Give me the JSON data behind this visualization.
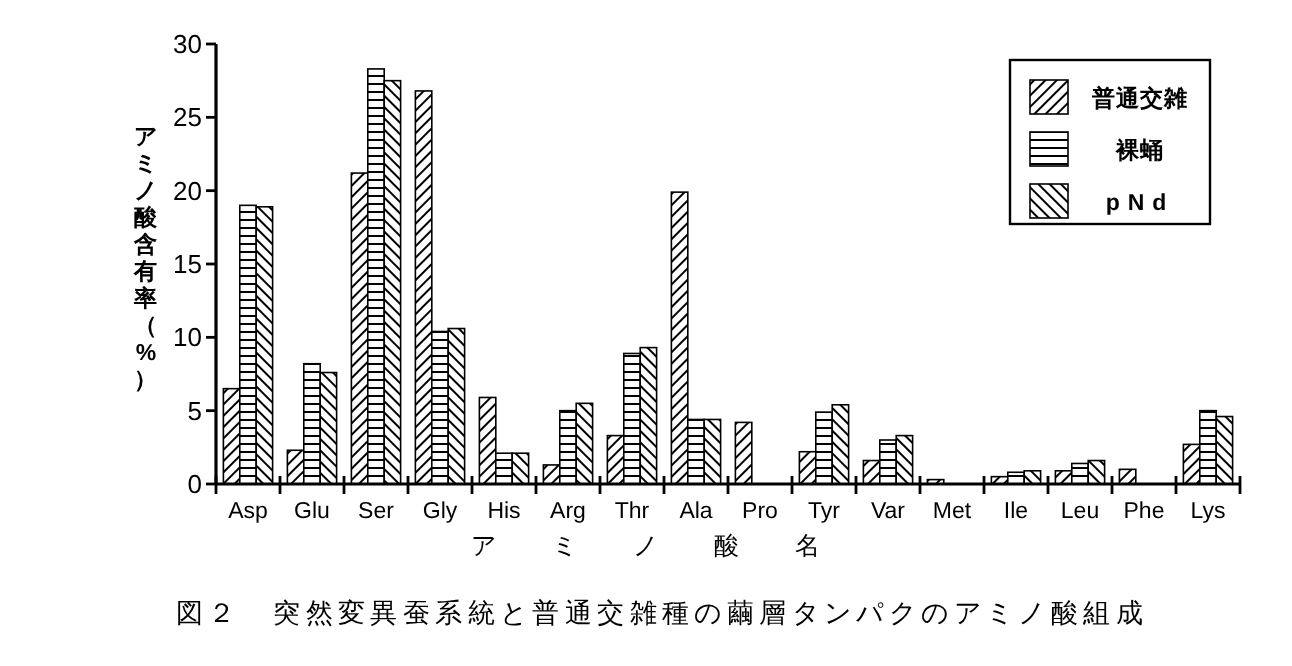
{
  "chart_data": {
    "type": "bar",
    "categories": [
      "Asp",
      "Glu",
      "Ser",
      "Gly",
      "His",
      "Arg",
      "Thr",
      "Ala",
      "Pro",
      "Tyr",
      "Var",
      "Met",
      "Ile",
      "Leu",
      "Phe",
      "Lys"
    ],
    "series": [
      {
        "name": "普通交雑",
        "color": "#000000",
        "values": [
          6.5,
          2.3,
          21.2,
          26.8,
          5.9,
          1.3,
          3.3,
          19.9,
          4.2,
          2.2,
          1.6,
          0.3,
          0.5,
          0.9,
          1.0,
          2.7
        ]
      },
      {
        "name": "裸蛹",
        "color": "#000000",
        "values": [
          19.0,
          8.2,
          28.3,
          10.4,
          2.1,
          5.0,
          8.9,
          4.4,
          0,
          4.9,
          3.0,
          0,
          0.8,
          1.4,
          0,
          5.0
        ]
      },
      {
        "name": "pNd",
        "color": "#000000",
        "values": [
          18.9,
          7.6,
          27.5,
          10.6,
          2.1,
          5.5,
          9.3,
          4.4,
          0,
          5.4,
          3.3,
          0,
          0.9,
          1.6,
          0,
          4.6
        ]
      }
    ],
    "ylim": [
      0,
      30
    ],
    "yticks": [
      0,
      5,
      10,
      15,
      20,
      25,
      30
    ],
    "xlabel": "ア ミ ノ 酸 名",
    "ylabel": "アミノ酸含有率（%）",
    "annotations": [
      "図２　突然変異蚕系統と普通交雑種の繭層タンパクのアミノ酸組成"
    ],
    "legend": "top right"
  }
}
